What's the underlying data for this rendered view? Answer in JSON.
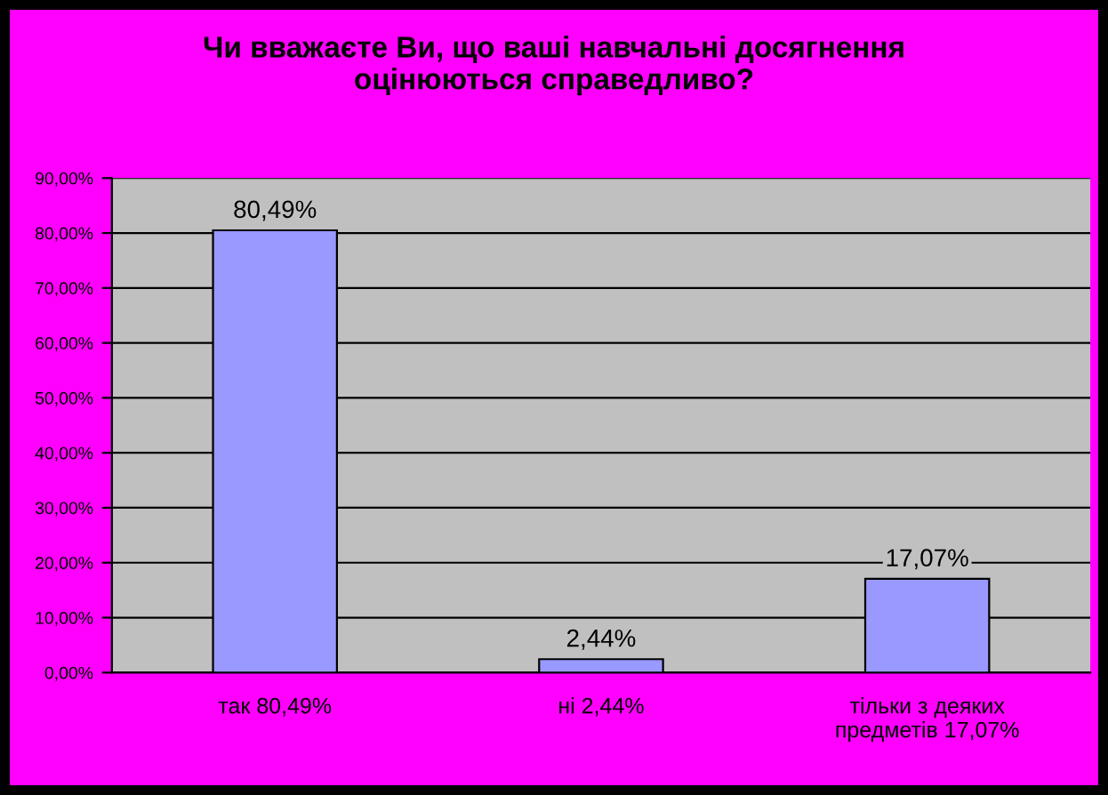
{
  "chart_data": {
    "type": "bar",
    "title": "Чи вважаєте Ви, що ваші навчальні досягнення\nоцінюються справедливо?",
    "categories": [
      "так 80,49%",
      "ні 2,44%",
      "тільки з деяких\nпредметів 17,07%"
    ],
    "values": [
      80.49,
      2.44,
      17.07
    ],
    "color": "#9999ff",
    "value_labels": [
      "80,49%",
      "2,44%",
      "17,07%"
    ],
    "ylim": [
      0,
      90
    ],
    "yticks": [
      {
        "value": 0,
        "label": "0,00%"
      },
      {
        "value": 10,
        "label": "10,00%"
      },
      {
        "value": 20,
        "label": "20,00%"
      },
      {
        "value": 30,
        "label": "30,00%"
      },
      {
        "value": 40,
        "label": "40,00%"
      },
      {
        "value": 50,
        "label": "50,00%"
      },
      {
        "value": 60,
        "label": "60,00%"
      },
      {
        "value": 70,
        "label": "70,00%"
      },
      {
        "value": 80,
        "label": "80,00%"
      },
      {
        "value": 90,
        "label": "90,00%"
      }
    ],
    "grid": "y"
  }
}
